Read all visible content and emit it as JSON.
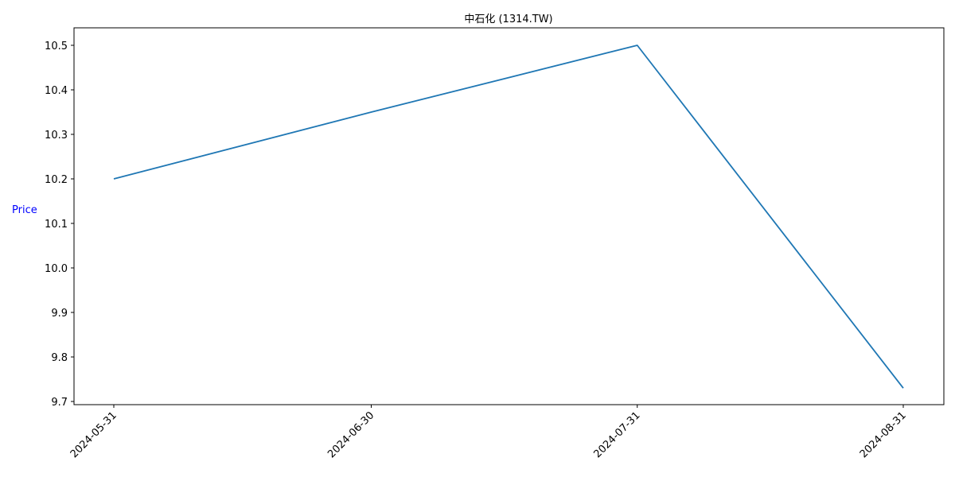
{
  "chart_data": {
    "type": "line",
    "title": "中石化 (1314.TW)",
    "xlabel": "",
    "ylabel": "Price",
    "ylabel_color": "#0000ff",
    "x": [
      "2024-05-31",
      "2024-06-30",
      "2024-07-31",
      "2024-08-31"
    ],
    "y_ticks": [
      "9.7",
      "9.8",
      "9.9",
      "10.0",
      "10.1",
      "10.2",
      "10.3",
      "10.4",
      "10.5"
    ],
    "ylim": [
      9.69,
      10.54
    ],
    "grid": false,
    "series": [
      {
        "values": [
          10.2,
          10.35,
          10.5,
          9.73
        ],
        "color": "#1f77b4"
      }
    ]
  }
}
